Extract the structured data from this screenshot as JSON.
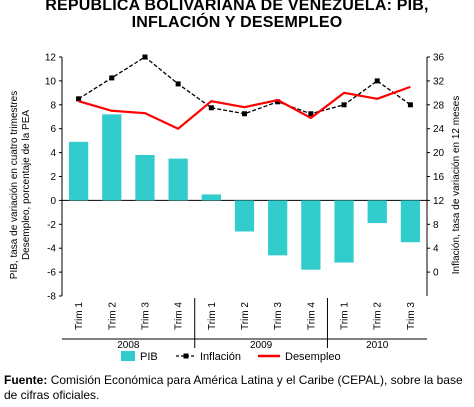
{
  "title_line1": "REPÚBLICA BOLIVARIANA DE VENEZUELA: PIB,",
  "title_line2": "INFLACIÓN Y DESEMPLEO",
  "source_label": "Fuente:",
  "source_text": "Comisión Económica para América Latina y el Caribe (CEPAL), sobre la base de cifras oficiales.",
  "chart_data": {
    "type": "bar",
    "categories": [
      "Trim 1",
      "Trim 2",
      "Trim 3",
      "Trim 4",
      "Trim 1",
      "Trim 2",
      "Trim 3",
      "Trim 4",
      "Trim 1",
      "Trim 2",
      "Trim 3"
    ],
    "groups": [
      {
        "label": "2008",
        "count": 4
      },
      {
        "label": "2009",
        "count": 4
      },
      {
        "label": "2010",
        "count": 3
      }
    ],
    "ylabel_left": "PIB, tasa de variación en cuatro trimestres Desempleo, porcentaje de la PEA",
    "ylabel_left_line1": "PIB, tasa de variación en cuatro trimestres",
    "ylabel_left_line2": "Desempleo, porcentaje de la PEA",
    "ylabel_right": "Inflación, tasa de variación en 12 meses",
    "ylim_left": [
      -8,
      12
    ],
    "yticks_left": [
      -8,
      -6,
      -4,
      -2,
      0,
      2,
      4,
      6,
      8,
      10,
      12
    ],
    "ylim_right": [
      -4,
      36
    ],
    "yticks_right": [
      0,
      4,
      8,
      12,
      16,
      20,
      24,
      28,
      32,
      36
    ],
    "series": [
      {
        "name": "PIB",
        "type": "bar",
        "axis": "left",
        "color": "#33cccc",
        "values": [
          4.9,
          7.2,
          3.8,
          3.5,
          0.5,
          -2.6,
          -4.6,
          -5.8,
          -5.2,
          -1.9,
          -3.5
        ]
      },
      {
        "name": "Inflación",
        "type": "line",
        "axis": "right",
        "color": "#000000",
        "marker": "square",
        "dashed": true,
        "values": [
          29.0,
          32.5,
          36.0,
          31.5,
          27.5,
          26.5,
          28.5,
          26.5,
          28.0,
          32.0,
          28.0
        ]
      },
      {
        "name": "Desempleo",
        "type": "line",
        "axis": "left",
        "color": "#ff0000",
        "values": [
          8.3,
          7.5,
          7.3,
          6.0,
          8.3,
          7.8,
          8.4,
          6.9,
          9.0,
          8.5,
          9.5
        ]
      }
    ],
    "legend_position": "bottom"
  }
}
